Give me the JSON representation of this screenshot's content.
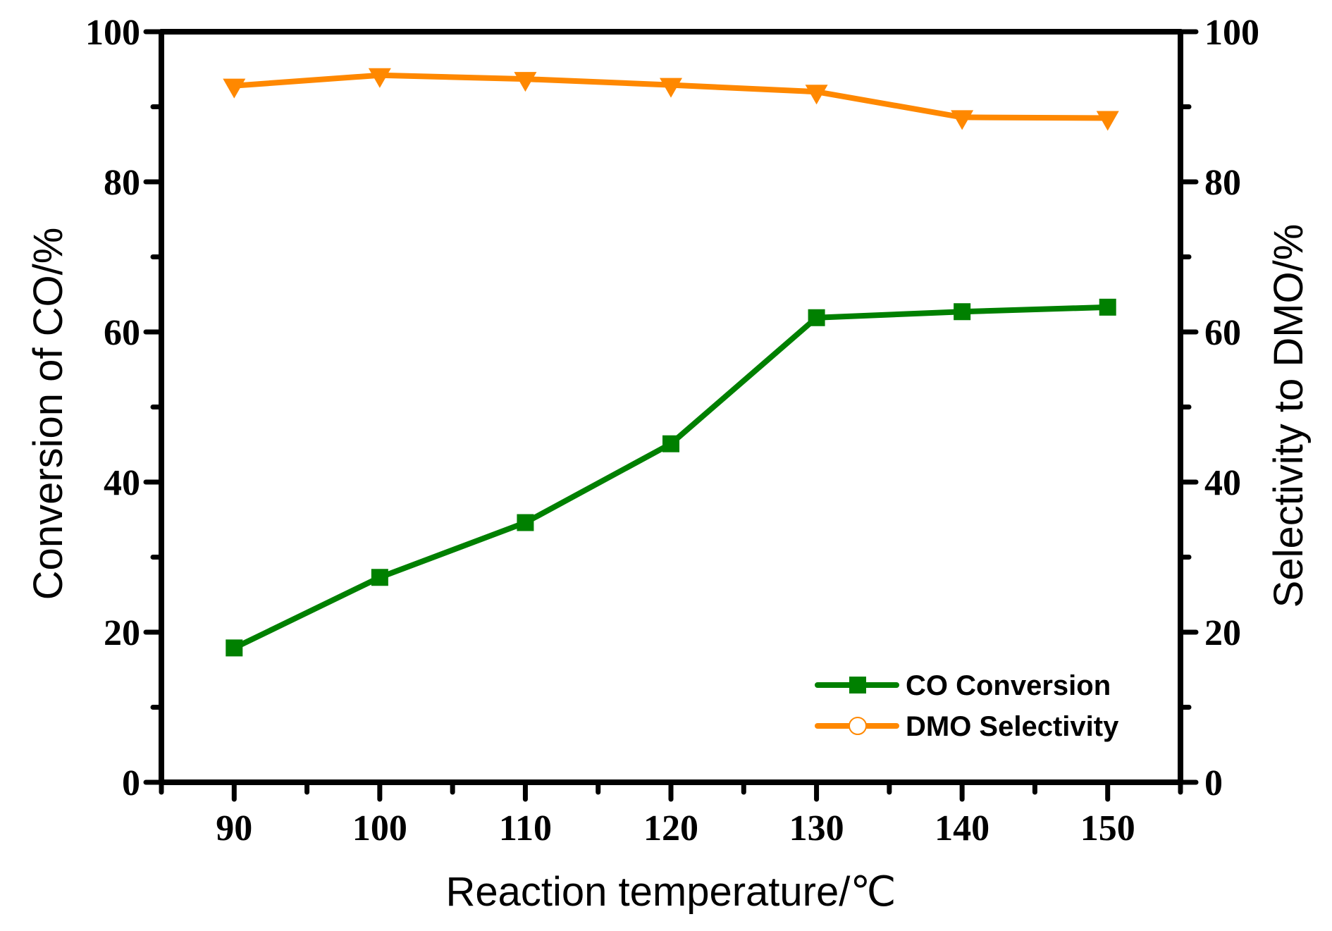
{
  "chart_data": {
    "type": "line",
    "title": "",
    "xlabel": "Reaction temperature/℃",
    "ylabel": "Conversion of CO/%",
    "ylabel_right": "Selectivity to DMO/%",
    "x": [
      90,
      100,
      110,
      120,
      130,
      140,
      150
    ],
    "xlim": [
      85,
      155
    ],
    "ylim": [
      0,
      100
    ],
    "ylim_right": [
      0,
      100
    ],
    "x_ticks": [
      90,
      100,
      110,
      120,
      130,
      140,
      150
    ],
    "x_tick_labels": [
      "90",
      "100",
      "110",
      "120",
      "130",
      "140",
      "150"
    ],
    "x_minor_step": 5,
    "y_ticks": [
      0,
      20,
      40,
      60,
      80,
      100
    ],
    "y_tick_labels": [
      "0",
      "20",
      "40",
      "60",
      "80",
      "100"
    ],
    "y_minor_step": 10,
    "grid": false,
    "legend_position": "bottom-right",
    "series": [
      {
        "name": "CO Conversion",
        "axis": "left",
        "color": "#008000",
        "marker": "square",
        "legend_marker": "square",
        "values": [
          17.9,
          27.3,
          34.6,
          45.1,
          61.9,
          62.7,
          63.3
        ]
      },
      {
        "name": "DMO Selectivity",
        "axis": "right",
        "color": "#FF8800",
        "marker": "triangle-down",
        "legend_marker": "open-circle",
        "values": [
          92.8,
          94.2,
          93.7,
          92.9,
          92.0,
          88.6,
          88.5
        ]
      }
    ]
  }
}
